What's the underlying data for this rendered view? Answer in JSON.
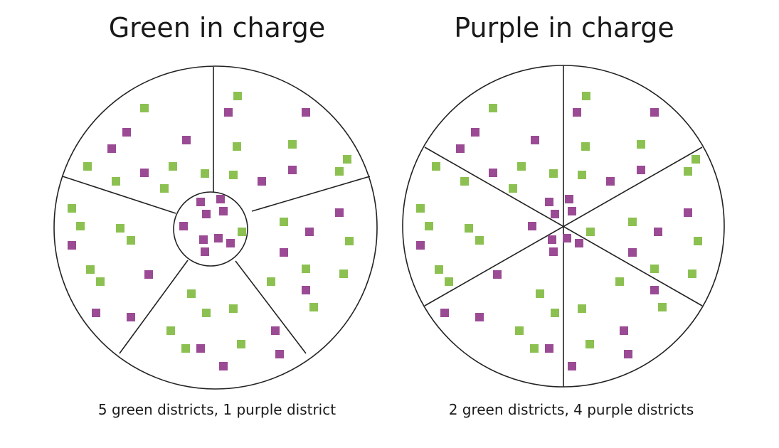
{
  "panels": [
    {
      "title": "Green in charge",
      "caption": "5 green districts, 1 purple district"
    },
    {
      "title": "Purple in charge",
      "caption": "2 green districts, 4 purple districts"
    }
  ]
}
